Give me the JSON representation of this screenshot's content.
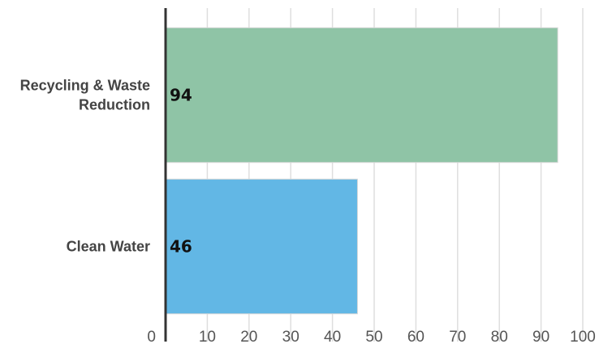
{
  "chart_data": {
    "type": "bar",
    "orientation": "horizontal",
    "title": "",
    "xlabel": "",
    "ylabel": "",
    "categories": [
      "Recycling & Waste Reduction",
      "Clean Water"
    ],
    "category_lines": [
      [
        "Recycling & Waste",
        "Reduction"
      ],
      [
        "Clean Water"
      ]
    ],
    "values": [
      94,
      46
    ],
    "colors": [
      "#8fc4a6",
      "#62b7e5"
    ],
    "xlim": [
      0,
      100
    ],
    "xticks": [
      0,
      10,
      20,
      30,
      40,
      50,
      60,
      70,
      80,
      90,
      100
    ],
    "grid": true,
    "legend": "none"
  }
}
